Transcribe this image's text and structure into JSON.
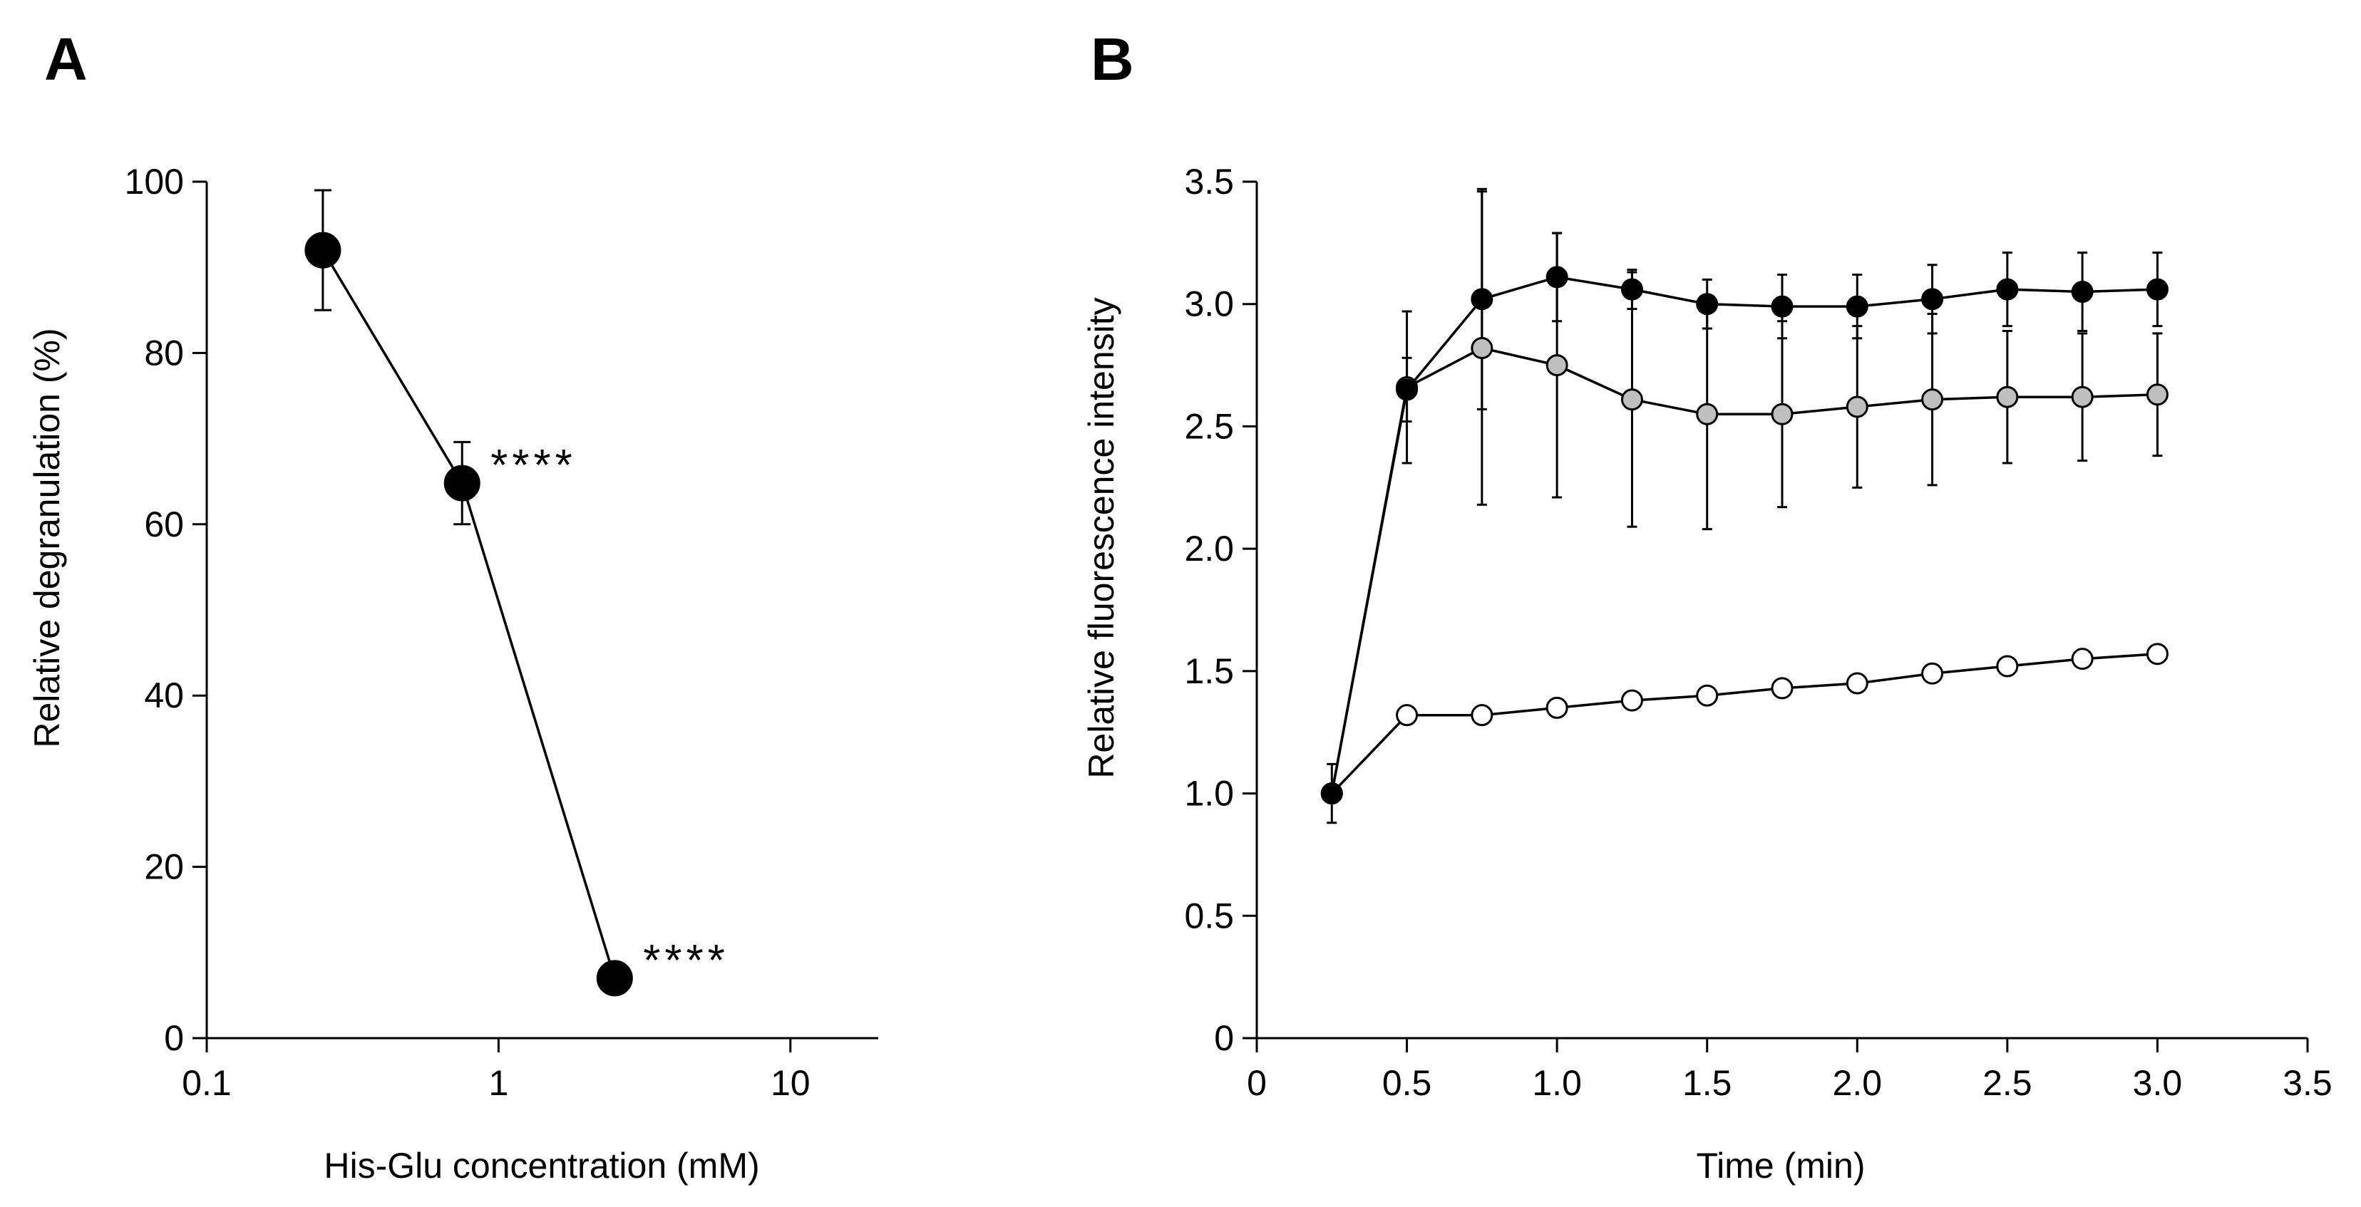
{
  "chart_data": [
    {
      "panel": "A",
      "type": "line",
      "xscale": "log",
      "xlabel": "His-Glu concentration (mM)",
      "ylabel": "Relative degranulation (%)",
      "xlim": [
        0.1,
        20
      ],
      "ylim": [
        0,
        100
      ],
      "xticks": [
        0.1,
        1,
        10
      ],
      "xtick_labels": [
        "0.1",
        "1",
        "10"
      ],
      "yticks": [
        0,
        20,
        40,
        60,
        80,
        100
      ],
      "ytick_labels": [
        "0",
        "20",
        "40",
        "60",
        "80",
        "100"
      ],
      "series": [
        {
          "name": "degranulation",
          "marker_fill": "#000000",
          "x": [
            0.25,
            0.75,
            2.5
          ],
          "y": [
            92,
            64.8,
            7
          ],
          "err": [
            7,
            4.8,
            0
          ]
        }
      ],
      "annotations": [
        {
          "x": 0.75,
          "y": 64.8,
          "text": "****"
        },
        {
          "x": 2.5,
          "y": 7,
          "text": "****"
        }
      ]
    },
    {
      "panel": "B",
      "type": "line",
      "xlabel": "Time (min)",
      "ylabel": "Relative fluorescence intensity",
      "xlim": [
        0,
        3.5
      ],
      "ylim": [
        0,
        3.5
      ],
      "xticks": [
        0,
        0.5,
        1.0,
        1.5,
        2.0,
        2.5,
        3.0,
        3.5
      ],
      "xtick_labels": [
        "0",
        "0.5",
        "1.0",
        "1.5",
        "2.0",
        "2.5",
        "3.0",
        "3.5"
      ],
      "yticks": [
        0,
        0.5,
        1.0,
        1.5,
        2.0,
        2.5,
        3.0,
        3.5
      ],
      "ytick_labels": [
        "0",
        "0.5",
        "1.0",
        "1.5",
        "2.0",
        "2.5",
        "3.0",
        "3.5"
      ],
      "x": [
        0.25,
        0.5,
        0.75,
        1.0,
        1.25,
        1.5,
        1.75,
        2.0,
        2.25,
        2.5,
        2.75,
        3.0
      ],
      "series": [
        {
          "name": "white",
          "marker_fill": "#ffffff",
          "y": [
            1.0,
            1.32,
            1.32,
            1.35,
            1.38,
            1.4,
            1.43,
            1.45,
            1.49,
            1.52,
            1.55,
            1.57
          ],
          "err": [
            0,
            0,
            0,
            0,
            0,
            0,
            0,
            0,
            0,
            0,
            0,
            0
          ]
        },
        {
          "name": "gray",
          "marker_fill": "#bfbfbf",
          "y": [
            1.0,
            2.66,
            2.82,
            2.75,
            2.61,
            2.55,
            2.55,
            2.58,
            2.61,
            2.62,
            2.62,
            2.63
          ],
          "err": [
            0.12,
            0.31,
            0.64,
            0.54,
            0.52,
            0.47,
            0.38,
            0.33,
            0.35,
            0.27,
            0.26,
            0.25
          ]
        },
        {
          "name": "black",
          "marker_fill": "#000000",
          "y": [
            1.0,
            2.65,
            3.02,
            3.11,
            3.06,
            3.0,
            2.99,
            2.99,
            3.02,
            3.06,
            3.05,
            3.06
          ],
          "err": [
            0,
            0.13,
            0.45,
            0.18,
            0.08,
            0.1,
            0.13,
            0.13,
            0.14,
            0.15,
            0.16,
            0.15
          ]
        }
      ]
    }
  ],
  "labels": {
    "panel_a": "A",
    "panel_b": "B"
  }
}
